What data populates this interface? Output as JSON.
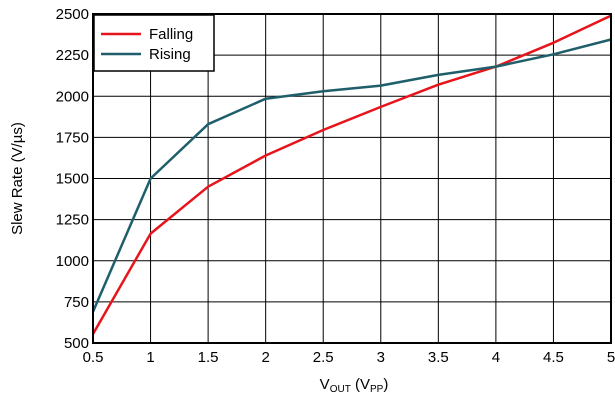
{
  "chart_data": {
    "type": "line",
    "xlabel_main": "V",
    "xlabel_sub": "OUT",
    "xlabel_mid": " (V",
    "xlabel_sub2": "PP",
    "xlabel_end": ")",
    "ylabel": "Slew Rate (V/µs)",
    "xlim": [
      0.5,
      5
    ],
    "ylim": [
      500,
      2500
    ],
    "x_ticks": [
      "0.5",
      "1",
      "1.5",
      "2",
      "2.5",
      "3",
      "3.5",
      "4",
      "4.5",
      "5"
    ],
    "y_ticks": [
      "500",
      "750",
      "1000",
      "1250",
      "1500",
      "1750",
      "2000",
      "2250",
      "2500"
    ],
    "grid": true,
    "legend_position": "top-left",
    "series": [
      {
        "name": "Falling",
        "color": "#e8141b",
        "x": [
          0.5,
          1,
          1.5,
          2,
          2.5,
          3,
          3.5,
          4,
          4.5,
          5
        ],
        "values": [
          555,
          1165,
          1450,
          1640,
          1795,
          1935,
          2070,
          2180,
          2325,
          2490
        ]
      },
      {
        "name": "Rising",
        "color": "#1f5f6b",
        "x": [
          0.5,
          1,
          1.5,
          2,
          2.5,
          3,
          3.5,
          4,
          4.5,
          5
        ],
        "values": [
          690,
          1500,
          1830,
          1985,
          2030,
          2065,
          2130,
          2180,
          2255,
          2345
        ]
      }
    ]
  }
}
